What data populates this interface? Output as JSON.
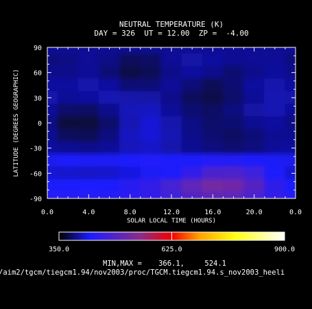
{
  "chart_data": {
    "type": "heatmap",
    "title": "NEUTRAL TEMPERATURE (K)",
    "subtitle": "DAY = 326  UT = 12.00  ZP =  -4.00",
    "xlabel": "SOLAR LOCAL TIME (HOURS)",
    "ylabel": "LATITUDE (DEGREES GEOGRAPHIC)",
    "xlim": [
      0,
      24
    ],
    "ylim": [
      -90,
      90
    ],
    "x_ticks": [
      "0.0",
      "4.0",
      "8.0",
      "12.0",
      "16.0",
      "20.0",
      "0.0"
    ],
    "y_ticks": [
      "-90",
      "-60",
      "-30",
      "0",
      "30",
      "60",
      "90"
    ],
    "x_tick_values": [
      0,
      4,
      8,
      12,
      16,
      20,
      24
    ],
    "y_tick_values": [
      -90,
      -60,
      -30,
      0,
      30,
      60,
      90
    ],
    "x": [
      0,
      2,
      4,
      6,
      8,
      10,
      12,
      14,
      16,
      18,
      20,
      22,
      24
    ],
    "y": [
      90,
      75,
      60,
      45,
      30,
      15,
      0,
      -15,
      -30,
      -45,
      -60,
      -75,
      -90
    ],
    "z": [
      [
        395,
        395,
        395,
        395,
        395,
        395,
        395,
        395,
        395,
        395,
        395,
        395,
        395
      ],
      [
        388,
        390,
        395,
        390,
        378,
        380,
        395,
        400,
        398,
        394,
        395,
        396,
        388
      ],
      [
        392,
        392,
        396,
        386,
        372,
        376,
        392,
        398,
        393,
        384,
        392,
        397,
        392
      ],
      [
        398,
        398,
        402,
        398,
        385,
        385,
        396,
        386,
        376,
        384,
        398,
        402,
        398
      ],
      [
        402,
        396,
        398,
        404,
        402,
        400,
        392,
        378,
        372,
        382,
        396,
        404,
        402
      ],
      [
        396,
        382,
        380,
        392,
        406,
        408,
        396,
        384,
        380,
        388,
        400,
        404,
        396
      ],
      [
        390,
        368,
        368,
        382,
        404,
        414,
        402,
        390,
        382,
        384,
        394,
        398,
        390
      ],
      [
        394,
        378,
        376,
        388,
        408,
        414,
        404,
        392,
        384,
        380,
        386,
        394,
        394
      ],
      [
        398,
        394,
        392,
        396,
        406,
        410,
        402,
        394,
        388,
        384,
        388,
        396,
        398
      ],
      [
        422,
        426,
        424,
        424,
        430,
        432,
        430,
        430,
        434,
        436,
        430,
        424,
        422
      ],
      [
        414,
        412,
        410,
        412,
        418,
        424,
        430,
        450,
        478,
        480,
        462,
        430,
        414
      ],
      [
        430,
        430,
        428,
        430,
        440,
        452,
        472,
        500,
        522,
        518,
        490,
        448,
        430
      ],
      [
        438,
        438,
        438,
        438,
        442,
        450,
        466,
        486,
        498,
        496,
        478,
        452,
        438
      ]
    ],
    "colorbar": {
      "min": 350,
      "max": 900,
      "labels": [
        "350.0",
        "625.0",
        "900.0"
      ],
      "colors": [
        "#000000",
        "#1c1cff",
        "#8a2c8a",
        "#f20000",
        "#ffa000",
        "#ffff10",
        "#ffffff"
      ],
      "stops": [
        0,
        0.14,
        0.36,
        0.5,
        0.62,
        0.78,
        1
      ],
      "marker_value": 625
    },
    "minmax_label": "MIN,MAX =",
    "min_value": "366.1,",
    "max_value": "524.1",
    "source_path": "/aim2/tgcm/tiegcm1.94/nov2003/proc/TGCM.tiegcm1.94.s_nov2003_heeli",
    "grid": false,
    "legend": "colorbar-bottom"
  }
}
